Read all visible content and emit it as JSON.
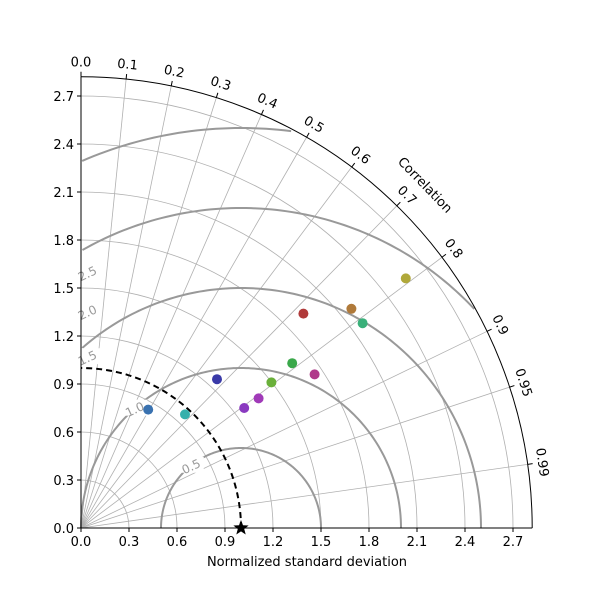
{
  "chart_data": {
    "type": "scatter",
    "title": "",
    "xlabel": "Normalized standard deviation",
    "ylabel": "",
    "correlation_label": "Correlation",
    "std_range": [
      0,
      2.82
    ],
    "std_ticks": [
      "0.0",
      "0.3",
      "0.6",
      "0.9",
      "1.2",
      "1.5",
      "1.8",
      "2.1",
      "2.4",
      "2.7"
    ],
    "std_tick_values": [
      0,
      0.3,
      0.6,
      0.9,
      1.2,
      1.5,
      1.8,
      2.1,
      2.4,
      2.7
    ],
    "correlation_ticks": [
      "0.0",
      "0.1",
      "0.2",
      "0.3",
      "0.4",
      "0.5",
      "0.6",
      "0.7",
      "0.8",
      "0.9",
      "0.95",
      "0.99"
    ],
    "correlation_tick_values": [
      0,
      0.1,
      0.2,
      0.3,
      0.4,
      0.5,
      0.6,
      0.7,
      0.8,
      0.9,
      0.95,
      0.99
    ],
    "grid": true,
    "reference": {
      "std": 1.0,
      "correlation": 1.0,
      "marker": "star",
      "color": "#000000"
    },
    "rms_contours": [
      {
        "value": 0.5,
        "label": "0.5"
      },
      {
        "value": 1.0,
        "label": "1.0"
      },
      {
        "value": 1.5,
        "label": "1.5"
      },
      {
        "value": 2.0,
        "label": "2.0"
      },
      {
        "value": 2.5,
        "label": "2.5"
      }
    ],
    "points": [
      {
        "x": 0.42,
        "y": 0.74,
        "color": "#3a72b0"
      },
      {
        "x": 0.65,
        "y": 0.71,
        "color": "#35b0ac"
      },
      {
        "x": 0.85,
        "y": 0.93,
        "color": "#3a3aa8"
      },
      {
        "x": 1.02,
        "y": 0.75,
        "color": "#8a3ac0"
      },
      {
        "x": 1.11,
        "y": 0.81,
        "color": "#a03ab8"
      },
      {
        "x": 1.19,
        "y": 0.91,
        "color": "#6ab03a"
      },
      {
        "x": 1.32,
        "y": 1.03,
        "color": "#3aa84a"
      },
      {
        "x": 1.46,
        "y": 0.96,
        "color": "#b03a8a"
      },
      {
        "x": 1.39,
        "y": 1.34,
        "color": "#b03a3a"
      },
      {
        "x": 1.69,
        "y": 1.37,
        "color": "#b07a3a"
      },
      {
        "x": 1.76,
        "y": 1.28,
        "color": "#3ab07a"
      },
      {
        "x": 2.03,
        "y": 1.56,
        "color": "#b0a83a"
      }
    ]
  }
}
